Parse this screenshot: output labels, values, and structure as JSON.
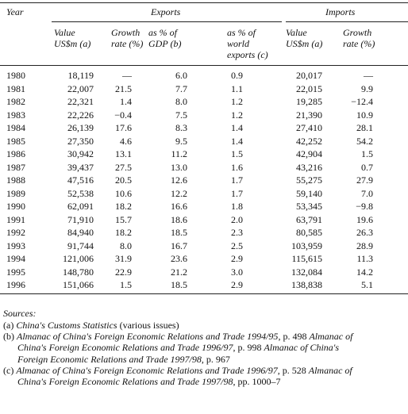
{
  "table": {
    "header": {
      "year": "Year",
      "exports": "Exports",
      "imports": "Imports",
      "columns": [
        [
          "Value",
          "US$m (a)"
        ],
        [
          "Growth",
          "rate (%)"
        ],
        [
          "as % of",
          "GDP (b)"
        ],
        [
          "as % of",
          "world",
          "exports (c)"
        ],
        [
          "Value",
          "US$m (a)"
        ],
        [
          "Growth",
          "rate (%)"
        ]
      ]
    },
    "rows": [
      [
        "1980",
        "18,119",
        "—",
        "6.0",
        "0.9",
        "20,017",
        "—"
      ],
      [
        "1981",
        "22,007",
        "21.5",
        "7.7",
        "1.1",
        "22,015",
        "9.9"
      ],
      [
        "1982",
        "22,321",
        "1.4",
        "8.0",
        "1.2",
        "19,285",
        "−12.4"
      ],
      [
        "1983",
        "22,226",
        "−0.4",
        "7.5",
        "1.2",
        "21,390",
        "10.9"
      ],
      [
        "1984",
        "26,139",
        "17.6",
        "8.3",
        "1.4",
        "27,410",
        "28.1"
      ],
      [
        "1985",
        "27,350",
        "4.6",
        "9.5",
        "1.4",
        "42,252",
        "54.2"
      ],
      [
        "1986",
        "30,942",
        "13.1",
        "11.2",
        "1.5",
        "42,904",
        "1.5"
      ],
      [
        "1987",
        "39,437",
        "27.5",
        "13.0",
        "1.6",
        "43,216",
        "0.7"
      ],
      [
        "1988",
        "47,516",
        "20.5",
        "12.6",
        "1.7",
        "55,275",
        "27.9"
      ],
      [
        "1989",
        "52,538",
        "10.6",
        "12.2",
        "1.7",
        "59,140",
        "7.0"
      ],
      [
        "1990",
        "62,091",
        "18.2",
        "16.6",
        "1.8",
        "53,345",
        "−9.8"
      ],
      [
        "1991",
        "71,910",
        "15.7",
        "18.6",
        "2.0",
        "63,791",
        "19.6"
      ],
      [
        "1992",
        "84,940",
        "18.2",
        "18.5",
        "2.3",
        "80,585",
        "26.3"
      ],
      [
        "1993",
        "91,744",
        "8.0",
        "16.7",
        "2.5",
        "103,959",
        "28.9"
      ],
      [
        "1994",
        "121,006",
        "31.9",
        "23.6",
        "2.9",
        "115,615",
        "11.3"
      ],
      [
        "1995",
        "148,780",
        "22.9",
        "21.2",
        "3.0",
        "132,084",
        "14.2"
      ],
      [
        "1996",
        "151,066",
        "1.5",
        "18.5",
        "2.9",
        "138,838",
        "5.1"
      ]
    ]
  },
  "sources": {
    "title": "Sources:",
    "lines": [
      [
        "(a) ",
        "China's Customs Statistics",
        " (various issues)"
      ],
      [
        "(b) ",
        "Almanac of China's Foreign Economic Relations and Trade 1994/95",
        ", p. 498 ",
        "Almanac of"
      ],
      [
        "China's Foreign Economic Relations and Trade 1996/97",
        ", p. 998 ",
        "Almanac of China's"
      ],
      [
        "Foreign Economic Relations and Trade 1997/98",
        ", p. 967"
      ],
      [
        "(c) ",
        "Almanac of China's Foreign Economic Relations and Trade 1996/97",
        ", p. 528 ",
        "Almanac of"
      ],
      [
        "China's Foreign Economic Relations and Trade 1997/98",
        ", pp. 1000–7"
      ]
    ]
  }
}
